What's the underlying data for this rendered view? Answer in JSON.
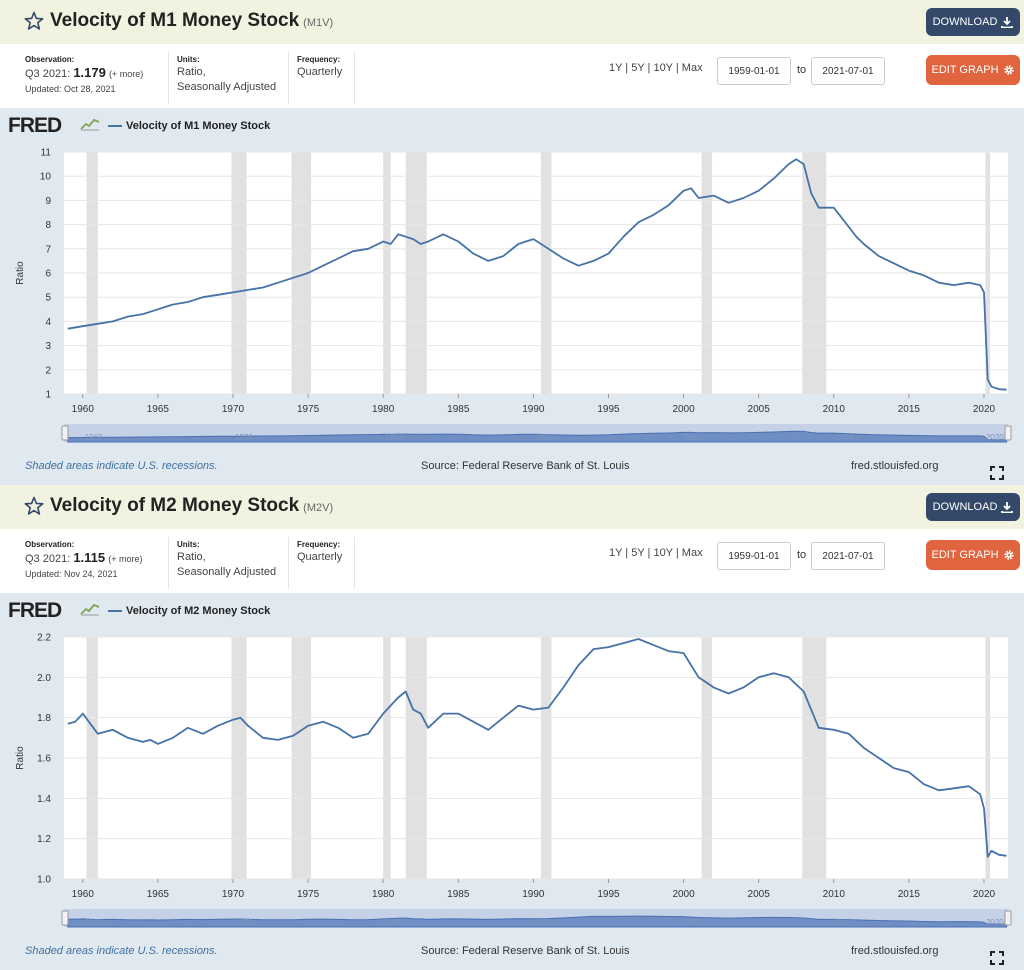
{
  "recession_periods": [
    [
      1960.25,
      1961.0
    ],
    [
      1969.9,
      1970.9
    ],
    [
      1973.9,
      1975.2
    ],
    [
      1980.0,
      1980.5
    ],
    [
      1981.5,
      1982.9
    ],
    [
      1990.5,
      1991.2
    ],
    [
      2001.2,
      2001.9
    ],
    [
      2007.9,
      2009.5
    ],
    [
      2020.1,
      2020.4
    ]
  ],
  "panels": [
    {
      "title": "Velocity of M1 Money Stock",
      "code": "(M1V)",
      "download_label": "DOWNLOAD",
      "observation_label": "Observation:",
      "observation_period": "Q3 2021:",
      "observation_value": "1.179",
      "more_label": "(+ more)",
      "updated": "Updated: Oct 28, 2021",
      "units_label": "Units:",
      "units_line1": "Ratio,",
      "units_line2": "Seasonally Adjusted",
      "frequency_label": "Frequency:",
      "frequency_value": "Quarterly",
      "range_links": "1Y | 5Y | 10Y | Max",
      "date_start": "1959-01-01",
      "date_to": "to",
      "date_end": "2021-07-01",
      "edit_label": "EDIT GRAPH",
      "fred_logo": "FRED",
      "recession_note": "Shaded areas indicate U.S. recessions.",
      "source": "Source: Federal Reserve Bank of St. Louis",
      "site": "fred.stlouisfed.org"
    },
    {
      "title": "Velocity of M2 Money Stock",
      "code": "(M2V)",
      "download_label": "DOWNLOAD",
      "observation_label": "Observation:",
      "observation_period": "Q3 2021:",
      "observation_value": "1.115",
      "more_label": "(+ more)",
      "updated": "Updated: Nov 24, 2021",
      "units_label": "Units:",
      "units_line1": "Ratio,",
      "units_line2": "Seasonally Adjusted",
      "frequency_label": "Frequency:",
      "frequency_value": "Quarterly",
      "range_links": "1Y | 5Y | 10Y | Max",
      "date_start": "1959-01-01",
      "date_to": "to",
      "date_end": "2021-07-01",
      "edit_label": "EDIT GRAPH",
      "fred_logo": "FRED",
      "recession_note": "Shaded areas indicate U.S. recessions.",
      "source": "Source: Federal Reserve Bank of St. Louis",
      "site": "fred.stlouisfed.org"
    }
  ],
  "chart_data": [
    {
      "type": "line",
      "series": [
        {
          "name": "Velocity of M1 Money Stock",
          "color": "#4572a7",
          "x": [
            1959,
            1960,
            1961,
            1962,
            1963,
            1964,
            1965,
            1966,
            1967,
            1968,
            1969,
            1970,
            1971,
            1972,
            1973,
            1974,
            1975,
            1976,
            1977,
            1978,
            1979,
            1980,
            1980.5,
            1981,
            1981.5,
            1982,
            1982.5,
            1983,
            1984,
            1985,
            1986,
            1987,
            1987.5,
            1988,
            1989,
            1989.5,
            1990,
            1991,
            1992,
            1993,
            1994,
            1995,
            1996,
            1997,
            1998,
            1999,
            2000,
            2000.5,
            2001,
            2002,
            2003,
            2004,
            2005,
            2006,
            2007,
            2007.5,
            2008,
            2008.5,
            2009,
            2010,
            2011,
            2011.5,
            2012,
            2013,
            2014,
            2015,
            2016,
            2017,
            2018,
            2019,
            2019.75,
            2020,
            2020.25,
            2020.5,
            2021,
            2021.5
          ],
          "y": [
            3.7,
            3.8,
            3.9,
            4.0,
            4.2,
            4.3,
            4.5,
            4.7,
            4.8,
            5.0,
            5.1,
            5.2,
            5.3,
            5.4,
            5.6,
            5.8,
            6.0,
            6.3,
            6.6,
            6.9,
            7.0,
            7.3,
            7.2,
            7.6,
            7.5,
            7.4,
            7.2,
            7.3,
            7.6,
            7.3,
            6.8,
            6.5,
            6.6,
            6.7,
            7.2,
            7.3,
            7.4,
            7.0,
            6.6,
            6.3,
            6.5,
            6.8,
            7.5,
            8.1,
            8.4,
            8.8,
            9.4,
            9.5,
            9.1,
            9.2,
            8.9,
            9.1,
            9.4,
            9.9,
            10.5,
            10.7,
            10.5,
            9.3,
            8.7,
            8.7,
            7.9,
            7.5,
            7.2,
            6.7,
            6.4,
            6.1,
            5.9,
            5.6,
            5.5,
            5.6,
            5.5,
            5.2,
            1.6,
            1.3,
            1.2,
            1.179
          ]
        }
      ],
      "title": "",
      "xlabel": "",
      "ylabel": "Ratio",
      "xlim": [
        1958.75,
        2021.6
      ],
      "ylim": [
        1,
        11
      ],
      "yticks": [
        1,
        2,
        3,
        4,
        5,
        6,
        7,
        8,
        9,
        10,
        11
      ],
      "ytick_labels": [
        "1",
        "2",
        "3",
        "4",
        "5",
        "6",
        "7",
        "8",
        "9",
        "10",
        "11"
      ],
      "xticks": [
        1960,
        1965,
        1970,
        1975,
        1980,
        1985,
        1990,
        1995,
        2000,
        2005,
        2010,
        2015,
        2020
      ],
      "xtick_labels": [
        "1960",
        "1965",
        "1970",
        "1975",
        "1980",
        "1985",
        "1990",
        "1995",
        "2000",
        "2005",
        "2010",
        "2015",
        "2020"
      ],
      "grid": "horizontal",
      "legend": "top-left"
    },
    {
      "type": "line",
      "series": [
        {
          "name": "Velocity of M2 Money Stock",
          "color": "#4572a7",
          "x": [
            1959,
            1959.5,
            1960,
            1960.5,
            1961,
            1962,
            1963,
            1964,
            1964.5,
            1965,
            1966,
            1967,
            1968,
            1969,
            1970,
            1970.5,
            1971,
            1972,
            1973,
            1974,
            1975,
            1976,
            1977,
            1978,
            1979,
            1980,
            1981,
            1981.5,
            1982,
            1982.5,
            1983,
            1984,
            1985,
            1986,
            1987,
            1988,
            1989,
            1990,
            1991,
            1992,
            1993,
            1994,
            1995,
            1996,
            1997,
            1998,
            1999,
            2000,
            2001,
            2002,
            2003,
            2004,
            2005,
            2006,
            2007,
            2008,
            2009,
            2010,
            2011,
            2012,
            2013,
            2014,
            2015,
            2016,
            2017,
            2018,
            2019,
            2019.75,
            2020,
            2020.25,
            2020.5,
            2021,
            2021.5
          ],
          "y": [
            1.77,
            1.78,
            1.82,
            1.77,
            1.72,
            1.74,
            1.7,
            1.68,
            1.69,
            1.67,
            1.7,
            1.75,
            1.72,
            1.76,
            1.79,
            1.8,
            1.76,
            1.7,
            1.69,
            1.71,
            1.76,
            1.78,
            1.75,
            1.7,
            1.72,
            1.82,
            1.9,
            1.93,
            1.84,
            1.82,
            1.75,
            1.82,
            1.82,
            1.78,
            1.74,
            1.8,
            1.86,
            1.84,
            1.85,
            1.95,
            2.06,
            2.14,
            2.15,
            2.17,
            2.19,
            2.16,
            2.13,
            2.12,
            2.0,
            1.95,
            1.92,
            1.95,
            2.0,
            2.02,
            2.0,
            1.93,
            1.75,
            1.74,
            1.72,
            1.65,
            1.6,
            1.55,
            1.53,
            1.47,
            1.44,
            1.45,
            1.46,
            1.42,
            1.35,
            1.11,
            1.14,
            1.12,
            1.115
          ]
        }
      ],
      "title": "",
      "xlabel": "",
      "ylabel": "Ratio",
      "xlim": [
        1958.75,
        2021.6
      ],
      "ylim": [
        1.0,
        2.2
      ],
      "yticks": [
        1.0,
        1.2,
        1.4,
        1.6,
        1.8,
        2.0,
        2.2
      ],
      "ytick_labels": [
        "1.0",
        "1.2",
        "1.4",
        "1.6",
        "1.8",
        "2.0",
        "2.2"
      ],
      "xticks": [
        1960,
        1965,
        1970,
        1975,
        1980,
        1985,
        1990,
        1995,
        2000,
        2005,
        2010,
        2015,
        2020
      ],
      "xtick_labels": [
        "1960",
        "1965",
        "1970",
        "1975",
        "1980",
        "1985",
        "1990",
        "1995",
        "2000",
        "2005",
        "2010",
        "2015",
        "2020"
      ],
      "grid": "horizontal",
      "legend": "top-left"
    }
  ]
}
